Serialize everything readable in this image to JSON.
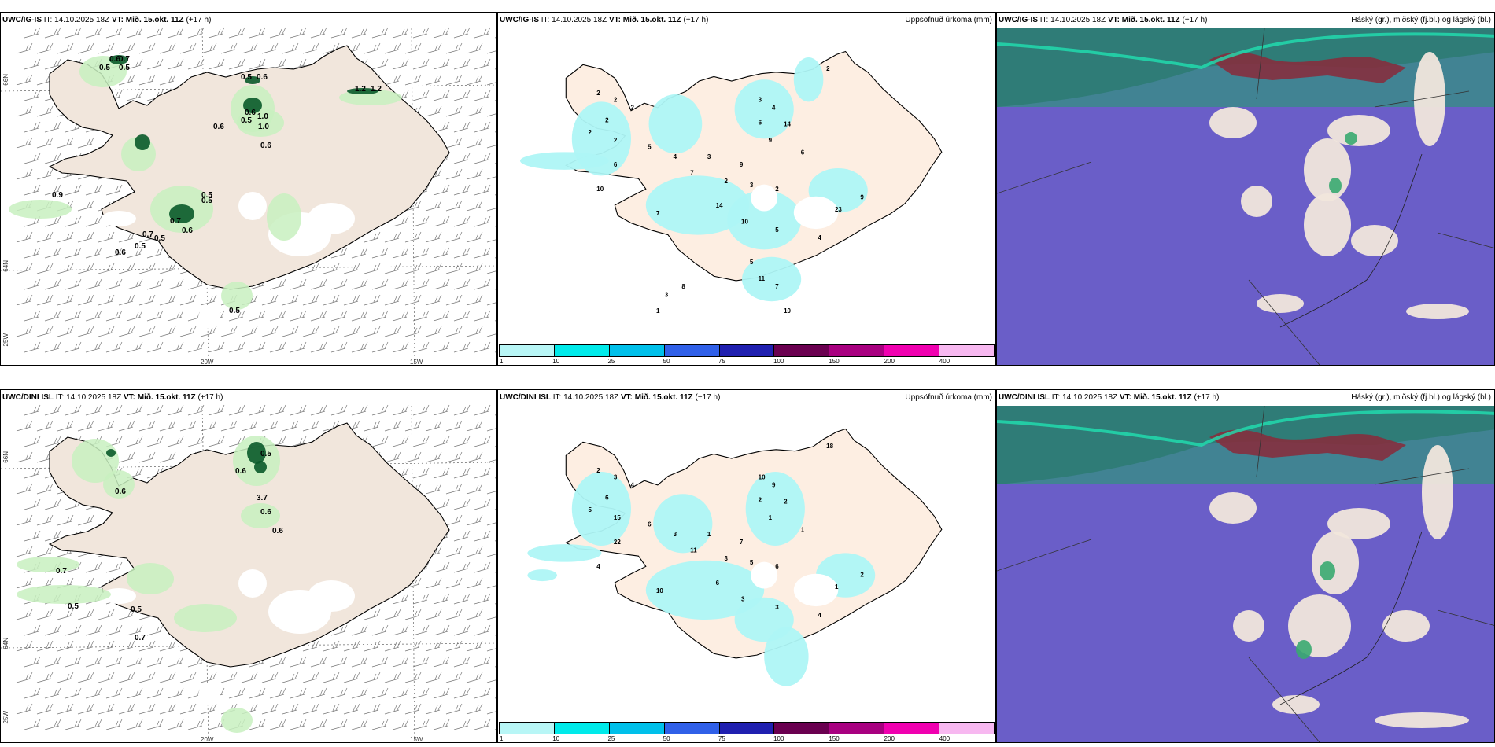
{
  "panels": [
    {
      "model": "UWC/IG-IS",
      "it": "IT: 14.10.2025 18Z",
      "vt_label": "VT:",
      "vt_value": "Mið. 15.okt. 11Z",
      "lead": "(+17 h)",
      "right": "",
      "type": "wind"
    },
    {
      "model": "UWC/IG-IS",
      "it": "IT: 14.10.2025 18Z",
      "vt_label": "VT:",
      "vt_value": "Mið. 15.okt. 11Z",
      "lead": "(+17 h)",
      "right": "Uppsöfnuð úrkoma (mm)",
      "type": "precip"
    },
    {
      "model": "UWC/IG-IS",
      "it": "IT: 14.10.2025 18Z",
      "vt_label": "VT:",
      "vt_value": "Mið. 15.okt. 11Z",
      "lead": "(+17 h)",
      "right": "Háský (gr.), miðský (fj.bl.) og lágský (bl.)",
      "type": "cloud"
    },
    {
      "model": "UWC/DINI ISL",
      "it": "IT: 14.10.2025 18Z",
      "vt_label": "VT:",
      "vt_value": "Mið. 15.okt. 11Z",
      "lead": "(+17 h)",
      "right": "",
      "type": "wind"
    },
    {
      "model": "UWC/DINI ISL",
      "it": "IT: 14.10.2025 18Z",
      "vt_label": "VT:",
      "vt_value": "Mið. 15.okt. 11Z",
      "lead": "(+17 h)",
      "right": "Uppsöfnuð úrkoma (mm)",
      "type": "precip"
    },
    {
      "model": "UWC/DINI ISL",
      "it": "IT: 14.10.2025 18Z",
      "vt_label": "VT:",
      "vt_value": "Mið. 15.okt. 11Z",
      "lead": "(+17 h)",
      "right": "Háský (gr.), miðský (fj.bl.) og lágský (bl.)",
      "type": "cloud"
    }
  ],
  "axis_labels": {
    "lat_66": "66N",
    "lat_64": "64N",
    "lon_25": "25W",
    "lon_20": "20W",
    "lon_15": "15W"
  },
  "legend": {
    "ticks": [
      "1",
      "10",
      "25",
      "50",
      "75",
      "100",
      "150",
      "200",
      "400"
    ],
    "colors": [
      "#b8f6f6",
      "#00eaea",
      "#00c0ea",
      "#3060e8",
      "#2020b0",
      "#6a0050",
      "#a80080",
      "#f000b0",
      "#f7b8f0"
    ]
  },
  "colors": {
    "land": "#f1e6dc",
    "precip_map_land": "#fdeee2",
    "green_light": "#c8f0c0",
    "green_dark": "#0a5a2a",
    "precip_cyan": "#aef6f6",
    "cloud_blue": "#6a5ec8",
    "cloud_teal": "#3a8a8a",
    "cloud_red": "#8a2a3a"
  },
  "wind_values": [
    [
      "0.6",
      "0.7",
      "0.5",
      "0.5",
      "0.5",
      "0.6",
      "1.2",
      "0.6",
      "0.5",
      "1.0",
      "0.6",
      "1.0",
      "0.9",
      "0.5",
      "0.5",
      "0.7",
      "0.6",
      "0.7",
      "0.5",
      "0.5",
      "0.6",
      "0.6",
      "1.2",
      "0.5"
    ],
    [
      "0.5",
      "0.6",
      "0.6",
      "3.7",
      "0.6",
      "0.6",
      "0.7",
      "0.5",
      "0.5",
      "0.7"
    ]
  ],
  "precip_values": [
    [
      "2",
      "2",
      "2",
      "2",
      "2",
      "2",
      "2",
      "3",
      "4",
      "6",
      "14",
      "9",
      "6",
      "3",
      "9",
      "2",
      "3",
      "2",
      "10",
      "7",
      "6",
      "5",
      "4",
      "7",
      "14",
      "10",
      "23",
      "9",
      "5",
      "4",
      "5",
      "11",
      "7",
      "10",
      "8",
      "3",
      "1"
    ],
    [
      "2",
      "3",
      "4",
      "6",
      "5",
      "15",
      "18",
      "10",
      "9",
      "2",
      "2",
      "1",
      "1",
      "1",
      "7",
      "3",
      "5",
      "6",
      "4",
      "10",
      "22",
      "6",
      "3",
      "11",
      "6",
      "3",
      "1",
      "2",
      "3",
      "4"
    ]
  ]
}
